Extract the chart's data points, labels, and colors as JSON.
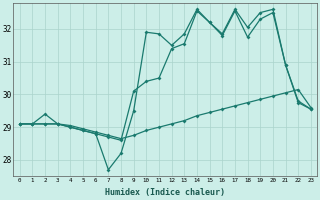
{
  "title": "",
  "xlabel": "Humidex (Indice chaleur)",
  "ylabel": "",
  "background_color": "#cceee8",
  "grid_color": "#aad4cc",
  "line_color": "#1a7a6e",
  "x_ticks": [
    0,
    1,
    2,
    3,
    4,
    5,
    6,
    7,
    8,
    9,
    10,
    11,
    12,
    13,
    14,
    15,
    16,
    17,
    18,
    19,
    20,
    21,
    22,
    23
  ],
  "y_ticks": [
    28,
    29,
    30,
    31,
    32
  ],
  "ylim": [
    27.5,
    32.8
  ],
  "xlim": [
    -0.5,
    23.5
  ],
  "line1_x": [
    0,
    1,
    2,
    3,
    4,
    5,
    6,
    7,
    8,
    9,
    10,
    11,
    12,
    13,
    14,
    15,
    16,
    17,
    18,
    19,
    20,
    21,
    22,
    23
  ],
  "line1_y": [
    29.1,
    29.1,
    29.1,
    29.1,
    29.05,
    28.95,
    28.85,
    28.75,
    28.65,
    28.75,
    28.9,
    29.0,
    29.1,
    29.2,
    29.35,
    29.45,
    29.55,
    29.65,
    29.75,
    29.85,
    29.95,
    30.05,
    30.15,
    29.6
  ],
  "line2_x": [
    0,
    1,
    2,
    3,
    4,
    5,
    6,
    7,
    8,
    9,
    10,
    11,
    12,
    13,
    14,
    15,
    16,
    17,
    18,
    19,
    20,
    21,
    22,
    23
  ],
  "line2_y": [
    29.1,
    29.1,
    29.4,
    29.1,
    29.0,
    28.9,
    28.8,
    27.7,
    28.2,
    29.5,
    31.9,
    31.85,
    31.5,
    31.85,
    32.6,
    32.2,
    31.85,
    32.6,
    32.05,
    32.5,
    32.6,
    30.9,
    29.8,
    29.55
  ],
  "line3_x": [
    0,
    1,
    2,
    3,
    4,
    5,
    6,
    7,
    8,
    9,
    10,
    11,
    12,
    13,
    14,
    15,
    16,
    17,
    18,
    19,
    20,
    21,
    22,
    23
  ],
  "line3_y": [
    29.1,
    29.1,
    29.1,
    29.1,
    29.0,
    28.9,
    28.8,
    28.7,
    28.6,
    30.1,
    30.4,
    30.5,
    31.4,
    31.55,
    32.55,
    32.2,
    31.8,
    32.55,
    31.75,
    32.3,
    32.5,
    30.9,
    29.75,
    29.55
  ],
  "marker": "D",
  "marker_size": 2,
  "line_width": 0.9
}
